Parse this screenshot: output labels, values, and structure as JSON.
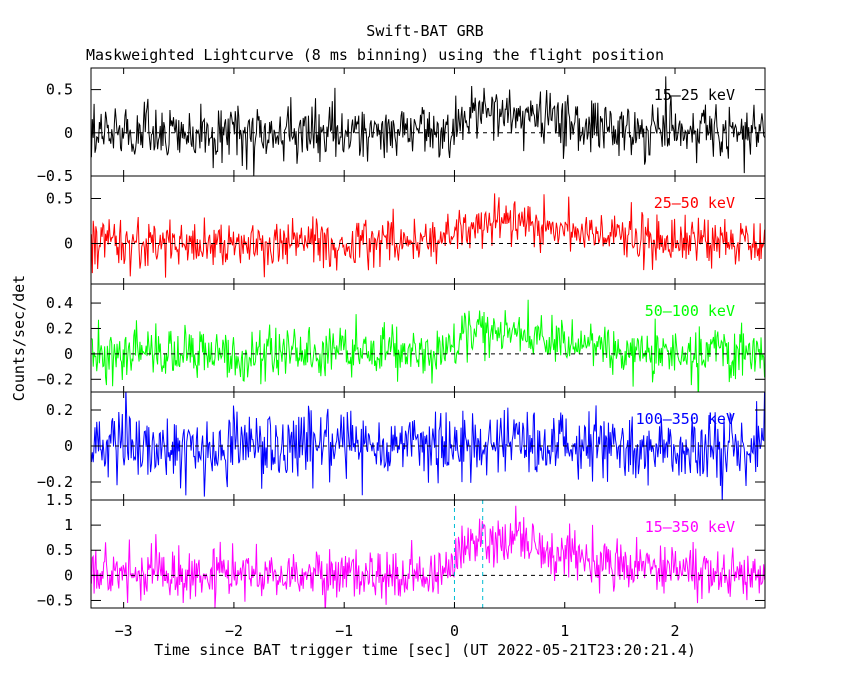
{
  "title": "Swift-BAT GRB",
  "subtitle": "Maskweighted Lightcurve (8 ms binning) using the flight position",
  "ylabel": "Counts/sec/det",
  "xlabel": "Time since BAT trigger time [sec] (UT 2022-05-21T23:20:21.4)",
  "chart_data": {
    "type": "line",
    "x_range": [
      -3.296,
      2.816
    ],
    "bin_width": 0.008,
    "x_ticks": [
      -3,
      -2,
      -1,
      0,
      1,
      2
    ],
    "x_tick_labels": [
      "−3",
      "−2",
      "−1",
      "0",
      "1",
      "2"
    ],
    "grid": false,
    "reference_lines": {
      "y_zero_dashed": true,
      "vertical_dashed_x": [
        0,
        0.256
      ]
    },
    "series": [
      {
        "name": "15–25 keV",
        "color": "#000000",
        "ylim": [
          -0.5,
          0.75
        ],
        "y_ticks": [
          -0.5,
          0,
          0.5
        ],
        "y_tick_labels": [
          "−0.5",
          "0",
          "0.5"
        ],
        "noise_sigma": 0.16,
        "pulse_amplitude": 0.22
      },
      {
        "name": "25–50 keV",
        "color": "#ff0000",
        "ylim": [
          -0.45,
          0.75
        ],
        "y_ticks": [
          0,
          0.5
        ],
        "y_tick_labels": [
          "0",
          "0.5"
        ],
        "noise_sigma": 0.13,
        "pulse_amplitude": 0.25
      },
      {
        "name": "50–100 keV",
        "color": "#00ff00",
        "ylim": [
          -0.3,
          0.55
        ],
        "y_ticks": [
          -0.2,
          0,
          0.2,
          0.4
        ],
        "y_tick_labels": [
          "−0.2",
          "0",
          "0.2",
          "0.4"
        ],
        "noise_sigma": 0.1,
        "pulse_amplitude": 0.18
      },
      {
        "name": "100–350 keV",
        "color": "#0000ff",
        "ylim": [
          -0.3,
          0.3
        ],
        "y_ticks": [
          -0.2,
          0,
          0.2
        ],
        "y_tick_labels": [
          "−0.2",
          "0",
          "0.2"
        ],
        "noise_sigma": 0.1,
        "pulse_amplitude": 0.0
      },
      {
        "name": "15–350 keV",
        "color": "#ff00ff",
        "ylim": [
          -0.65,
          1.5
        ],
        "y_ticks": [
          -0.5,
          0,
          0.5,
          1,
          1.5
        ],
        "y_tick_labels": [
          "−0.5",
          "0",
          "0.5",
          "1",
          "1.5"
        ],
        "noise_sigma": 0.26,
        "pulse_amplitude": 0.7
      }
    ]
  }
}
